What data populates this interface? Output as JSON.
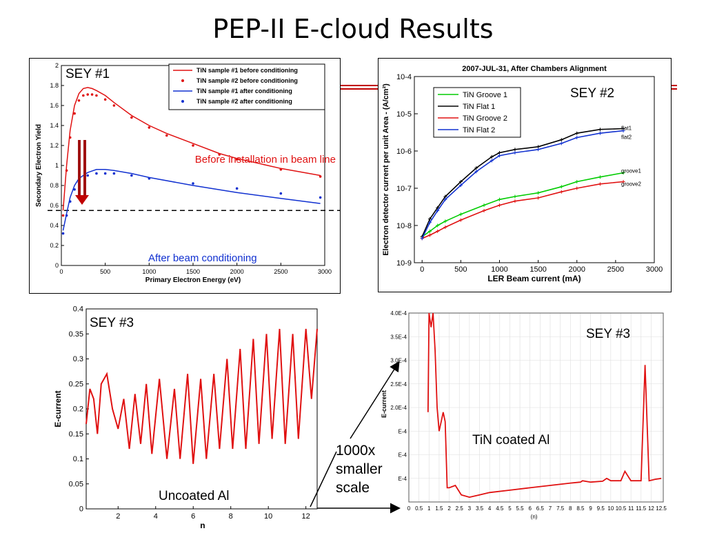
{
  "slide_title": "PEP-II E-cloud Results",
  "colors": {
    "red": "#e01010",
    "blue": "#1030d0",
    "green": "#00cc00",
    "black": "#000000"
  },
  "annotations": {
    "scale_note": [
      "1000x",
      "smaller",
      "scale"
    ]
  },
  "chart_data": [
    {
      "id": "sey1",
      "type": "line",
      "panel_label": "SEY #1",
      "xlabel": "Primary Electron Energy (eV)",
      "ylabel": "Secondary Electron Yield",
      "xlim": [
        0,
        3000
      ],
      "ylim": [
        0,
        2
      ],
      "xticks": [
        0,
        500,
        1000,
        1500,
        2000,
        2500,
        3000
      ],
      "yticks": [
        0,
        0.2,
        0.4,
        0.6,
        0.8,
        1,
        1.2,
        1.4,
        1.6,
        1.8,
        2
      ],
      "reference_line_y": 0.55,
      "annotations": [
        "Before installation in beam line",
        "After beam conditioning"
      ],
      "series": [
        {
          "name": "TiN sample #1 before conditioning",
          "style": "line",
          "color": "#e01010",
          "x": [
            20,
            60,
            100,
            150,
            200,
            250,
            300,
            350,
            400,
            500,
            600,
            800,
            1000,
            1200,
            1500,
            1800,
            2000,
            2500,
            2950
          ],
          "y": [
            0.55,
            1.0,
            1.35,
            1.6,
            1.72,
            1.77,
            1.78,
            1.77,
            1.75,
            1.7,
            1.63,
            1.5,
            1.4,
            1.32,
            1.22,
            1.12,
            1.07,
            0.97,
            0.9
          ]
        },
        {
          "name": "TiN sample #2 before conditioning",
          "style": "dots",
          "color": "#e01010",
          "x": [
            20,
            60,
            100,
            150,
            200,
            250,
            300,
            350,
            400,
            500,
            600,
            800,
            1000,
            1200,
            1500,
            1800,
            2000,
            2500,
            2950
          ],
          "y": [
            0.5,
            0.95,
            1.28,
            1.52,
            1.65,
            1.7,
            1.71,
            1.71,
            1.7,
            1.66,
            1.6,
            1.48,
            1.38,
            1.3,
            1.2,
            1.11,
            1.06,
            0.96,
            0.89
          ]
        },
        {
          "name": "TiN sample #1 after conditioning",
          "style": "line",
          "color": "#1030d0",
          "x": [
            20,
            60,
            100,
            150,
            200,
            300,
            400,
            500,
            600,
            800,
            1000,
            1500,
            2000,
            2500,
            2950
          ],
          "y": [
            0.35,
            0.52,
            0.68,
            0.8,
            0.87,
            0.93,
            0.96,
            0.96,
            0.95,
            0.92,
            0.88,
            0.8,
            0.73,
            0.67,
            0.62
          ]
        },
        {
          "name": "TiN sample #2 after conditioning",
          "style": "dots",
          "color": "#1030d0",
          "x": [
            20,
            60,
            100,
            150,
            200,
            300,
            400,
            500,
            600,
            800,
            1000,
            1500,
            2000,
            2500,
            2950
          ],
          "y": [
            0.32,
            0.5,
            0.64,
            0.76,
            0.83,
            0.9,
            0.92,
            0.92,
            0.92,
            0.9,
            0.87,
            0.82,
            0.77,
            0.72,
            0.68
          ]
        }
      ]
    },
    {
      "id": "sey2",
      "type": "line",
      "panel_label": "SEY #2",
      "title": "2007-JUL-31, After Chambers Alignment",
      "xlabel": "LER Beam current (mA)",
      "ylabel": "Electron detector current per unit Area - (A/cm²)",
      "xlim": [
        -100,
        3000
      ],
      "ylim_log10": [
        -9,
        -4
      ],
      "xticks": [
        0,
        500,
        1000,
        1500,
        2000,
        2500,
        3000
      ],
      "ytick_labels": [
        "10-9",
        "10-8",
        "10-7",
        "10-6",
        "10-5",
        "10-4"
      ],
      "end_labels": [
        "flat1",
        "flat2",
        "groove1",
        "groove2"
      ],
      "series": [
        {
          "name": "TiN Groove 1",
          "color": "#00cc00",
          "x": [
            0,
            100,
            200,
            300,
            500,
            800,
            1000,
            1200,
            1500,
            1800,
            2000,
            2300,
            2600
          ],
          "y": [
            5e-09,
            7e-09,
            1e-08,
            1.3e-08,
            2e-08,
            3.5e-08,
            5e-08,
            6e-08,
            7.5e-08,
            1.1e-07,
            1.5e-07,
            2e-07,
            2.6e-07
          ]
        },
        {
          "name": "TiN Flat 1",
          "color": "#000000",
          "x": [
            0,
            100,
            200,
            300,
            500,
            700,
            900,
            1000,
            1200,
            1500,
            1800,
            2000,
            2300,
            2600
          ],
          "y": [
            5e-09,
            1.5e-08,
            3e-08,
            6e-08,
            1.5e-07,
            3.5e-07,
            7e-07,
            9e-07,
            1.1e-06,
            1.3e-06,
            2e-06,
            3e-06,
            3.8e-06,
            4e-06
          ]
        },
        {
          "name": "TiN Groove 2",
          "color": "#e01010",
          "x": [
            0,
            100,
            200,
            300,
            500,
            800,
            1000,
            1200,
            1500,
            1800,
            2000,
            2300,
            2600
          ],
          "y": [
            4.5e-09,
            5.5e-09,
            7e-09,
            9e-09,
            1.4e-08,
            2.5e-08,
            3.5e-08,
            4.5e-08,
            5.5e-08,
            8e-08,
            1e-07,
            1.3e-07,
            1.5e-07
          ]
        },
        {
          "name": "TiN Flat 2",
          "color": "#1030d0",
          "x": [
            0,
            100,
            200,
            300,
            500,
            700,
            900,
            1000,
            1200,
            1500,
            1800,
            2000,
            2300,
            2600
          ],
          "y": [
            4.5e-09,
            1.2e-08,
            2.5e-08,
            5e-08,
            1.2e-07,
            2.8e-07,
            5.5e-07,
            7.5e-07,
            9e-07,
            1.1e-06,
            1.6e-06,
            2.3e-06,
            3e-06,
            3.5e-06
          ]
        }
      ]
    },
    {
      "id": "sey3a",
      "type": "line",
      "panel_label": "SEY #3",
      "xlabel": "n",
      "ylabel": "E-current",
      "xlim": [
        0.3,
        12.6
      ],
      "ylim": [
        0,
        0.4
      ],
      "xticks": [
        2,
        4,
        6,
        8,
        10,
        12
      ],
      "yticks": [
        0,
        0.05,
        0.1,
        0.15,
        0.2,
        0.25,
        0.3,
        0.35,
        0.4
      ],
      "annotation": "Uncoated Al",
      "series": [
        {
          "name": "",
          "color": "#e01010",
          "x": [
            0.3,
            0.5,
            0.7,
            0.9,
            1.1,
            1.4,
            1.7,
            2.0,
            2.3,
            2.6,
            2.9,
            3.2,
            3.5,
            3.8,
            4.2,
            4.6,
            5.0,
            5.3,
            5.7,
            6.0,
            6.4,
            6.7,
            7.1,
            7.4,
            7.8,
            8.1,
            8.5,
            8.8,
            9.2,
            9.5,
            9.9,
            10.2,
            10.6,
            10.9,
            11.3,
            11.6,
            12.0,
            12.3,
            12.6
          ],
          "y": [
            0.17,
            0.24,
            0.22,
            0.15,
            0.25,
            0.27,
            0.2,
            0.16,
            0.22,
            0.12,
            0.23,
            0.13,
            0.25,
            0.11,
            0.26,
            0.1,
            0.24,
            0.1,
            0.27,
            0.09,
            0.26,
            0.1,
            0.27,
            0.12,
            0.3,
            0.12,
            0.32,
            0.12,
            0.34,
            0.13,
            0.35,
            0.14,
            0.36,
            0.13,
            0.35,
            0.14,
            0.36,
            0.22,
            0.36
          ]
        }
      ]
    },
    {
      "id": "sey3b",
      "type": "line",
      "panel_label": "SEY #3",
      "xlabel": "(n)",
      "ylabel": "E-current",
      "xlim": [
        0,
        12.6
      ],
      "ylim": [
        0,
        0.0004
      ],
      "xticks": [
        0,
        0.5,
        1,
        1.5,
        2,
        2.5,
        3,
        3.5,
        4,
        4.5,
        5,
        5.5,
        6,
        6.5,
        7,
        7.5,
        8,
        8.5,
        9,
        9.5,
        10,
        10.5,
        11,
        11.5,
        12,
        12.5
      ],
      "ytick_labels": [
        "E-4",
        "E-4",
        "E-4",
        "2.0E-4",
        "2.5E-4",
        "3.0E-4",
        "3.5E-4",
        "4.0E-4"
      ],
      "annotation": "TiN coated Al",
      "series": [
        {
          "name": "",
          "color": "#e01010",
          "x": [
            0.95,
            1.0,
            1.1,
            1.2,
            1.3,
            1.4,
            1.5,
            1.6,
            1.7,
            1.8,
            1.9,
            2.0,
            2.3,
            2.6,
            3.0,
            3.5,
            4.0,
            5.0,
            6.0,
            7.0,
            8.0,
            8.5,
            8.6,
            9.0,
            9.6,
            9.8,
            10.0,
            10.5,
            10.7,
            11.0,
            11.5,
            11.7,
            11.9,
            12.2,
            12.5
          ],
          "y": [
            0.00019,
            0.0004,
            0.00037,
            0.0004,
            0.00032,
            0.0002,
            0.00015,
            0.00017,
            0.00019,
            0.00017,
            3e-05,
            3e-05,
            3.5e-05,
            1.5e-05,
            1e-05,
            1.5e-05,
            2e-05,
            2.5e-05,
            3e-05,
            3.5e-05,
            4e-05,
            4.2e-05,
            4.5e-05,
            4.2e-05,
            4.4e-05,
            5e-05,
            4.5e-05,
            4.5e-05,
            6.5e-05,
            4.5e-05,
            4.5e-05,
            0.00029,
            4.5e-05,
            4.8e-05,
            5e-05
          ]
        }
      ]
    }
  ]
}
